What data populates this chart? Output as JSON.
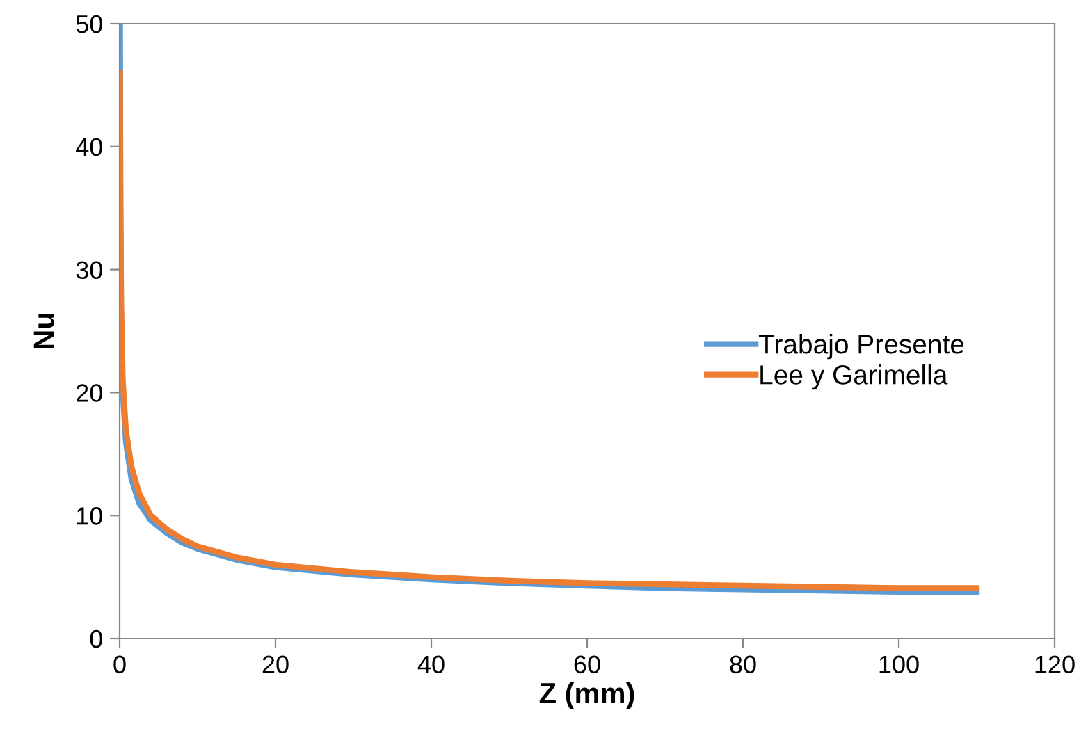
{
  "chart_data": {
    "type": "line",
    "xlabel": "Z (mm)",
    "ylabel": "Nu",
    "xlim": [
      0,
      120
    ],
    "xticks": [
      0,
      20,
      40,
      60,
      80,
      100,
      120
    ],
    "ylim": [
      0,
      50
    ],
    "yticks": [
      0,
      10,
      20,
      30,
      40,
      50
    ],
    "grid": false,
    "legend": "right",
    "marker": "none",
    "line_style": "solid",
    "series": [
      {
        "name": "Trabajo Presente",
        "color": "#5b9bd5",
        "x": [
          0.05,
          0.1,
          0.2,
          0.4,
          0.8,
          1.5,
          2.5,
          4,
          6,
          8,
          10,
          15,
          20,
          30,
          40,
          50,
          60,
          70,
          80,
          90,
          100,
          110
        ],
        "values": [
          50,
          35,
          25,
          20,
          16,
          13,
          11,
          9.6,
          8.6,
          7.8,
          7.3,
          6.4,
          5.8,
          5.2,
          4.8,
          4.5,
          4.3,
          4.1,
          4.0,
          3.9,
          3.8,
          3.8
        ]
      },
      {
        "name": "Lee y Garimella",
        "color": "#ed7d31",
        "x": [
          0.05,
          0.1,
          0.2,
          0.4,
          0.8,
          1.5,
          2.5,
          4,
          6,
          8,
          10,
          15,
          20,
          30,
          40,
          50,
          60,
          70,
          80,
          90,
          100,
          110
        ],
        "values": [
          46,
          36,
          27,
          21,
          17,
          14,
          11.8,
          10,
          8.9,
          8.1,
          7.5,
          6.6,
          6.0,
          5.4,
          5.0,
          4.7,
          4.5,
          4.4,
          4.3,
          4.2,
          4.1,
          4.1
        ]
      }
    ]
  }
}
